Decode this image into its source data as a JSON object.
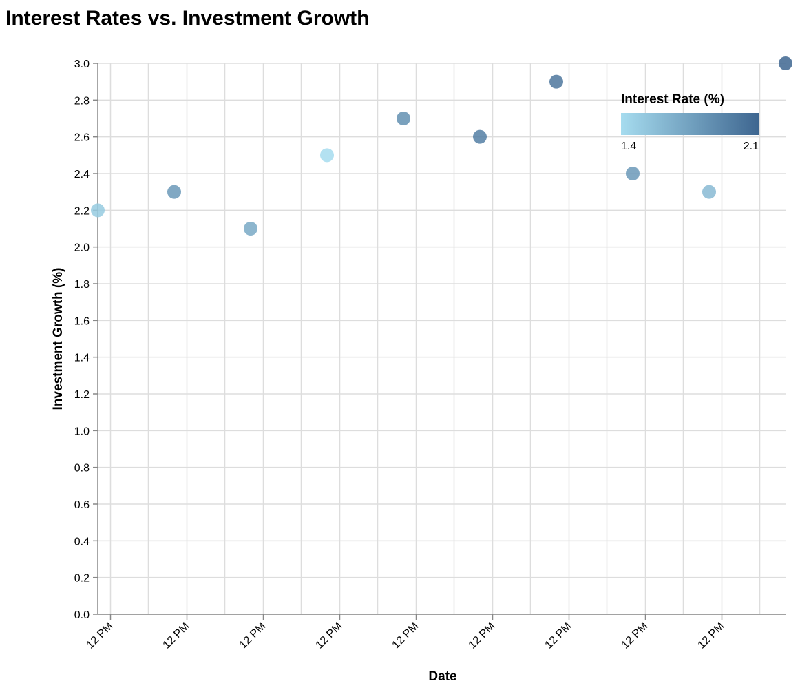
{
  "chart_data": {
    "type": "scatter",
    "title": "Interest Rates vs. Investment Growth",
    "xlabel": "Date",
    "ylabel": "Investment Growth (%)",
    "x_tick_labels": [
      "12 PM",
      "12 PM",
      "12 PM",
      "12 PM",
      "12 PM",
      "12 PM",
      "12 PM",
      "12 PM",
      "12 PM"
    ],
    "ylim": [
      0,
      3.0
    ],
    "y_ticks": [
      "0.0",
      "0.2",
      "0.4",
      "0.6",
      "0.8",
      "1.0",
      "1.2",
      "1.4",
      "1.6",
      "1.8",
      "2.0",
      "2.2",
      "2.4",
      "2.6",
      "2.8",
      "3.0"
    ],
    "grid": true,
    "legend": {
      "title": "Interest Rate (%)",
      "placement": "top-right",
      "min_label": "1.4",
      "max_label": "2.1",
      "color_low": "#a6dcef",
      "color_high": "#3e6690"
    },
    "points": [
      {
        "y": 2.2,
        "interest_rate": 1.5
      },
      {
        "y": 2.3,
        "interest_rate": 1.8
      },
      {
        "y": 2.1,
        "interest_rate": 1.7
      },
      {
        "y": 2.5,
        "interest_rate": 1.4
      },
      {
        "y": 2.7,
        "interest_rate": 1.85
      },
      {
        "y": 2.6,
        "interest_rate": 1.95
      },
      {
        "y": 2.9,
        "interest_rate": 2.0
      },
      {
        "y": 2.4,
        "interest_rate": 1.8
      },
      {
        "y": 2.3,
        "interest_rate": 1.6
      },
      {
        "y": 3.0,
        "interest_rate": 2.1
      }
    ]
  }
}
